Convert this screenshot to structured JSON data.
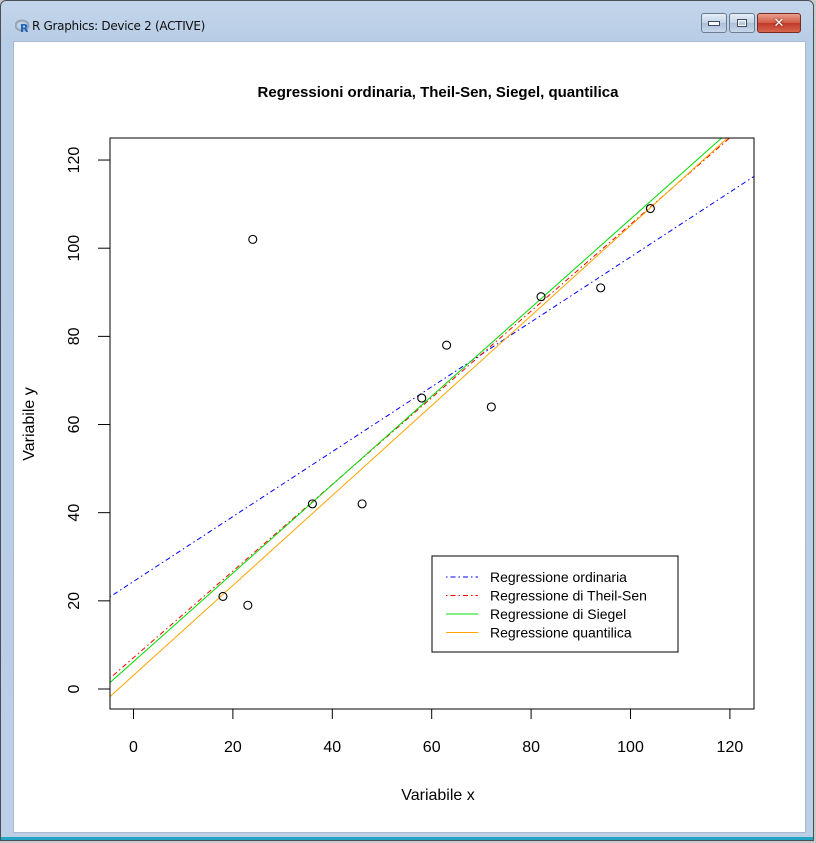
{
  "window": {
    "title": "R Graphics: Device 2 (ACTIVE)",
    "controls": {
      "minimize": "minimize",
      "maximize": "maximize",
      "close": "close"
    }
  },
  "chart_data": {
    "type": "scatter",
    "title": "Regressioni ordinaria, Theil-Sen, Siegel, quantilica",
    "xlabel": "Variabile x",
    "ylabel": "Variabile y",
    "xlim": [
      -4.8,
      124.8
    ],
    "ylim": [
      -4.5,
      125
    ],
    "grid": false,
    "xticks": [
      0,
      20,
      40,
      60,
      80,
      100,
      120
    ],
    "yticks": [
      0,
      20,
      40,
      60,
      80,
      100,
      120
    ],
    "points": {
      "x": [
        18,
        23,
        24,
        36,
        46,
        58,
        63,
        72,
        82,
        94,
        104
      ],
      "y": [
        21,
        19,
        102,
        42,
        42,
        66,
        78,
        64,
        89,
        91,
        109
      ]
    },
    "lines": [
      {
        "name": "Regressione ordinaria",
        "intercept": 24.4,
        "slope": 0.736,
        "color": "#0000ff",
        "dash": "dotdash"
      },
      {
        "name": "Regressione di Theil-Sen",
        "intercept": 7.1,
        "slope": 0.983,
        "color": "#ff0000",
        "dash": "dotdash"
      },
      {
        "name": "Regressione di Siegel",
        "intercept": 6.2,
        "slope": 1.004,
        "color": "#00dd00",
        "dash": "solid"
      },
      {
        "name": "Regressione quantilica",
        "intercept": 3.1,
        "slope": 1.02,
        "color": "#ffa500",
        "dash": "solid"
      }
    ],
    "legend": {
      "position": "bottom-right",
      "entries": [
        "Regressione ordinaria",
        "Regressione di Theil-Sen",
        "Regressione di Siegel",
        "Regressione quantilica"
      ]
    }
  }
}
